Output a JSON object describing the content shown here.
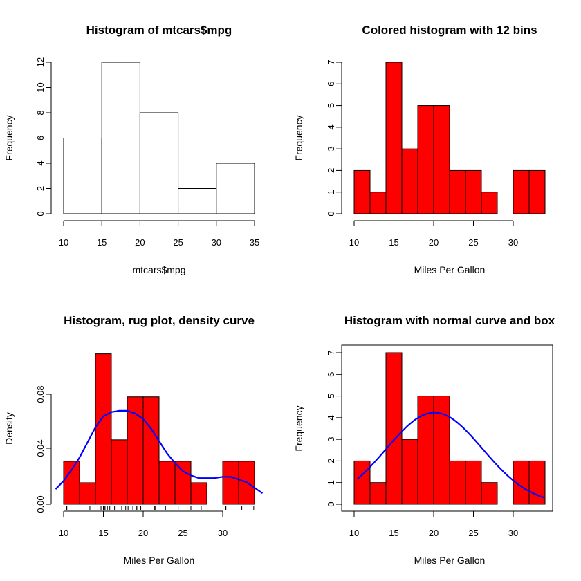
{
  "chart_data": [
    {
      "type": "bar",
      "title": "Histogram of mtcars$mpg",
      "xlabel": "mtcars$mpg",
      "ylabel": "Frequency",
      "bins": [
        [
          10,
          15
        ],
        [
          15,
          20
        ],
        [
          20,
          25
        ],
        [
          25,
          30
        ],
        [
          30,
          35
        ]
      ],
      "values": [
        6,
        12,
        8,
        2,
        4
      ],
      "xlim": [
        10,
        35
      ],
      "ylim": [
        0,
        12
      ],
      "xticks": [
        "10",
        "15",
        "20",
        "25",
        "30",
        "35"
      ],
      "yticks": [
        "0",
        "2",
        "4",
        "6",
        "8",
        "10",
        "12"
      ],
      "fill": "#ffffff",
      "box": false
    },
    {
      "type": "bar",
      "title": "Colored histogram with 12 bins",
      "xlabel": "Miles Per Gallon",
      "ylabel": "Frequency",
      "bins": [
        [
          10,
          12
        ],
        [
          12,
          14
        ],
        [
          14,
          16
        ],
        [
          16,
          18
        ],
        [
          18,
          20
        ],
        [
          20,
          22
        ],
        [
          22,
          24
        ],
        [
          24,
          26
        ],
        [
          26,
          28
        ],
        [
          28,
          30
        ],
        [
          30,
          32
        ],
        [
          32,
          34
        ]
      ],
      "values": [
        2,
        1,
        7,
        3,
        5,
        5,
        2,
        2,
        1,
        0,
        2,
        2
      ],
      "xlim": [
        10,
        34
      ],
      "ylim": [
        0,
        7
      ],
      "xticks": [
        "10",
        "15",
        "20",
        "25",
        "30"
      ],
      "yticks": [
        "0",
        "1",
        "2",
        "3",
        "4",
        "5",
        "6",
        "7"
      ],
      "fill": "#ff0000",
      "box": false
    },
    {
      "type": "bar",
      "title": "Histogram, rug plot, density curve",
      "xlabel": "Miles Per Gallon",
      "ylabel": "Density",
      "bins": [
        [
          10,
          12
        ],
        [
          12,
          14
        ],
        [
          14,
          16
        ],
        [
          16,
          18
        ],
        [
          18,
          20
        ],
        [
          20,
          22
        ],
        [
          22,
          24
        ],
        [
          24,
          26
        ],
        [
          26,
          28
        ],
        [
          28,
          30
        ],
        [
          30,
          32
        ],
        [
          32,
          34
        ]
      ],
      "values": [
        0.03125,
        0.015625,
        0.109375,
        0.046875,
        0.078125,
        0.078125,
        0.03125,
        0.03125,
        0.015625,
        0,
        0.03125,
        0.03125
      ],
      "xlim": [
        10,
        34
      ],
      "ylim": [
        0,
        0.1
      ],
      "xticks": [
        "10",
        "15",
        "20",
        "25",
        "30"
      ],
      "yticks": [
        "0.00",
        "0.04",
        "0.08"
      ],
      "fill": "#ff0000",
      "box": false,
      "density_curve": {
        "color": "#0000ff",
        "x": [
          9,
          10,
          11,
          12,
          13,
          14,
          15,
          16,
          17,
          18,
          19,
          20,
          21,
          22,
          23,
          24,
          25,
          26,
          27,
          28,
          29,
          30,
          31,
          32,
          33,
          34,
          35
        ],
        "y": [
          0.011,
          0.017,
          0.025,
          0.034,
          0.045,
          0.056,
          0.064,
          0.067,
          0.068,
          0.068,
          0.066,
          0.062,
          0.055,
          0.046,
          0.037,
          0.03,
          0.024,
          0.021,
          0.019,
          0.019,
          0.019,
          0.02,
          0.02,
          0.018,
          0.016,
          0.012,
          0.008
        ]
      },
      "rug": {
        "values": [
          21.0,
          21.0,
          22.8,
          21.4,
          18.7,
          18.1,
          14.3,
          24.4,
          22.8,
          19.2,
          17.8,
          16.4,
          17.3,
          15.2,
          10.4,
          10.4,
          14.7,
          32.4,
          30.4,
          33.9,
          21.5,
          15.5,
          15.2,
          13.3,
          19.2,
          27.3,
          26.0,
          30.4,
          15.8,
          19.7,
          15.0,
          21.4
        ]
      }
    },
    {
      "type": "bar",
      "title": "Histogram with normal curve and box",
      "xlabel": "Miles Per Gallon",
      "ylabel": "Frequency",
      "bins": [
        [
          10,
          12
        ],
        [
          12,
          14
        ],
        [
          14,
          16
        ],
        [
          16,
          18
        ],
        [
          18,
          20
        ],
        [
          20,
          22
        ],
        [
          22,
          24
        ],
        [
          24,
          26
        ],
        [
          26,
          28
        ],
        [
          28,
          30
        ],
        [
          30,
          32
        ],
        [
          32,
          34
        ]
      ],
      "values": [
        2,
        1,
        7,
        3,
        5,
        5,
        2,
        2,
        1,
        0,
        2,
        2
      ],
      "xlim": [
        10,
        34
      ],
      "ylim": [
        0,
        7
      ],
      "xticks": [
        "10",
        "15",
        "20",
        "25",
        "30"
      ],
      "yticks": [
        "0",
        "1",
        "2",
        "3",
        "4",
        "5",
        "6",
        "7"
      ],
      "fill": "#ff0000",
      "box": true,
      "normal_curve": {
        "color": "#0000ff",
        "mean": 20.09,
        "sd": 6.03,
        "scale": 64,
        "xrange": [
          10.4,
          33.9
        ]
      }
    }
  ]
}
